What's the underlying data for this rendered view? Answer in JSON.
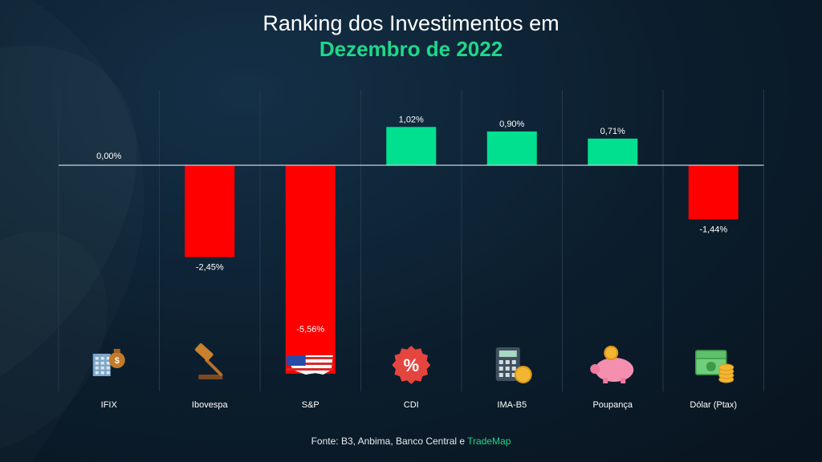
{
  "colors": {
    "positive": "#00e08f",
    "negative": "#ff0000",
    "accent": "#1ed889",
    "gridline": "#26394b",
    "baseline": "#c8d2dc"
  },
  "header": {
    "title_line1": "Ranking dos Investimentos em",
    "title_line2": "Dezembro de 2022"
  },
  "footer": {
    "source_prefix": "Fonte: B3, Anbima, Banco Central e ",
    "source_brand": "TradeMap"
  },
  "chart_data": {
    "type": "bar",
    "title": "Ranking dos Investimentos em Dezembro de 2022",
    "xlabel": "",
    "ylabel": "",
    "ylim": [
      -5.56,
      1.02
    ],
    "grid": true,
    "legend": "none",
    "categories": [
      "IFIX",
      "Ibovespa",
      "S&P",
      "CDI",
      "IMA-B5",
      "Poupança",
      "Dólar (Ptax)"
    ],
    "values": [
      0.0,
      -2.45,
      -5.56,
      1.02,
      0.9,
      0.71,
      -1.44
    ],
    "value_labels": [
      "0,00%",
      "-2,45%",
      "-5,56%",
      "1,02%",
      "0,90%",
      "0,71%",
      "-1,44%"
    ],
    "icons": [
      "money-bag-building-icon",
      "gavel-icon",
      "usa-map-icon",
      "percent-badge-icon",
      "calculator-coin-icon",
      "piggy-bank-icon",
      "dollar-cash-icon"
    ]
  }
}
